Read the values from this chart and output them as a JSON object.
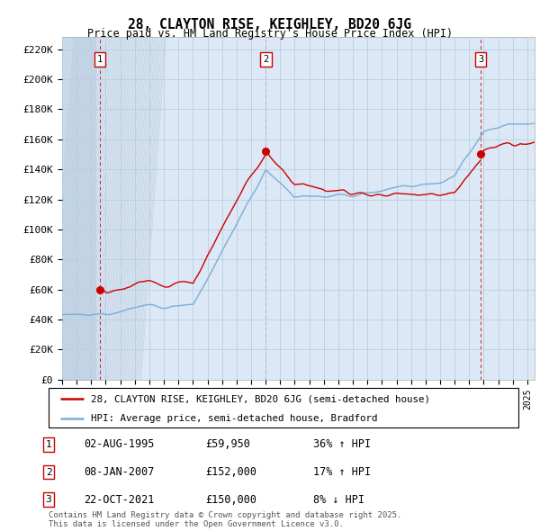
{
  "title": "28, CLAYTON RISE, KEIGHLEY, BD20 6JG",
  "subtitle": "Price paid vs. HM Land Registry's House Price Index (HPI)",
  "ylabel_ticks": [
    "£0",
    "£20K",
    "£40K",
    "£60K",
    "£80K",
    "£100K",
    "£120K",
    "£140K",
    "£160K",
    "£180K",
    "£200K",
    "£220K"
  ],
  "ytick_values": [
    0,
    20000,
    40000,
    60000,
    80000,
    100000,
    120000,
    140000,
    160000,
    180000,
    200000,
    220000
  ],
  "ylim": [
    0,
    228000
  ],
  "xlim_start": 1993.0,
  "xlim_end": 2025.5,
  "purchases": [
    {
      "label": "1",
      "date_num": 1995.58,
      "price": 59950
    },
    {
      "label": "2",
      "date_num": 2007.02,
      "price": 152000
    },
    {
      "label": "3",
      "date_num": 2021.81,
      "price": 150000
    }
  ],
  "legend_entries": [
    {
      "color": "#cc0000",
      "label": "28, CLAYTON RISE, KEIGHLEY, BD20 6JG (semi-detached house)"
    },
    {
      "color": "#6699cc",
      "label": "HPI: Average price, semi-detached house, Bradford"
    }
  ],
  "table_rows": [
    {
      "num": "1",
      "date": "02-AUG-1995",
      "price": "£59,950",
      "change": "36% ↑ HPI"
    },
    {
      "num": "2",
      "date": "08-JAN-2007",
      "price": "£152,000",
      "change": "17% ↑ HPI"
    },
    {
      "num": "3",
      "date": "22-OCT-2021",
      "price": "£150,000",
      "change": "8% ↓ HPI"
    }
  ],
  "footer": "Contains HM Land Registry data © Crown copyright and database right 2025.\nThis data is licensed under the Open Government Licence v3.0.",
  "bg_color": "#dce8f5",
  "grid_color": "#b8cfe0",
  "red_line_color": "#cc0000",
  "blue_line_color": "#7aaed6",
  "vline_color": "#cc0000"
}
